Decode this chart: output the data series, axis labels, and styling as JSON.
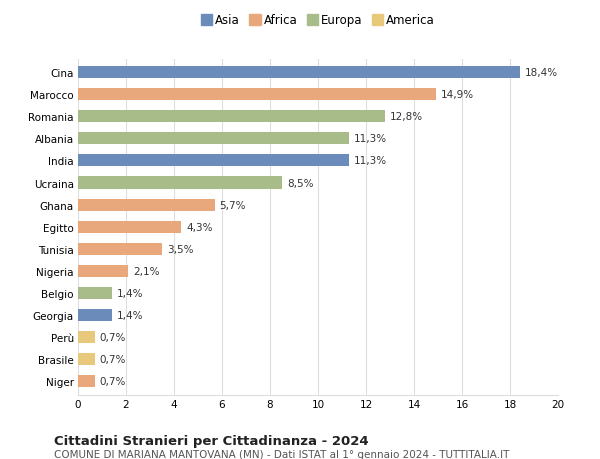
{
  "countries": [
    "Cina",
    "Marocco",
    "Romania",
    "Albania",
    "India",
    "Ucraina",
    "Ghana",
    "Egitto",
    "Tunisia",
    "Nigeria",
    "Belgio",
    "Georgia",
    "Perù",
    "Brasile",
    "Niger"
  ],
  "values": [
    18.4,
    14.9,
    12.8,
    11.3,
    11.3,
    8.5,
    5.7,
    4.3,
    3.5,
    2.1,
    1.4,
    1.4,
    0.7,
    0.7,
    0.7
  ],
  "labels": [
    "18,4%",
    "14,9%",
    "12,8%",
    "11,3%",
    "11,3%",
    "8,5%",
    "5,7%",
    "4,3%",
    "3,5%",
    "2,1%",
    "1,4%",
    "1,4%",
    "0,7%",
    "0,7%",
    "0,7%"
  ],
  "continents": [
    "Asia",
    "Africa",
    "Europa",
    "Europa",
    "Asia",
    "Europa",
    "Africa",
    "Africa",
    "Africa",
    "Africa",
    "Europa",
    "Asia",
    "America",
    "America",
    "Africa"
  ],
  "colors": {
    "Asia": "#6b8cba",
    "Africa": "#e8a87c",
    "Europa": "#a8bc8a",
    "America": "#e8c97c"
  },
  "title": "Cittadini Stranieri per Cittadinanza - 2024",
  "subtitle": "COMUNE DI MARIANA MANTOVANA (MN) - Dati ISTAT al 1° gennaio 2024 - TUTTITALIA.IT",
  "xlim": [
    0,
    20
  ],
  "xticks": [
    0,
    2,
    4,
    6,
    8,
    10,
    12,
    14,
    16,
    18,
    20
  ],
  "background_color": "#ffffff",
  "grid_color": "#dddddd",
  "bar_height": 0.55,
  "label_fontsize": 7.5,
  "ytick_fontsize": 7.5,
  "xtick_fontsize": 7.5,
  "title_fontsize": 9.5,
  "subtitle_fontsize": 7.5,
  "legend_fontsize": 8.5
}
